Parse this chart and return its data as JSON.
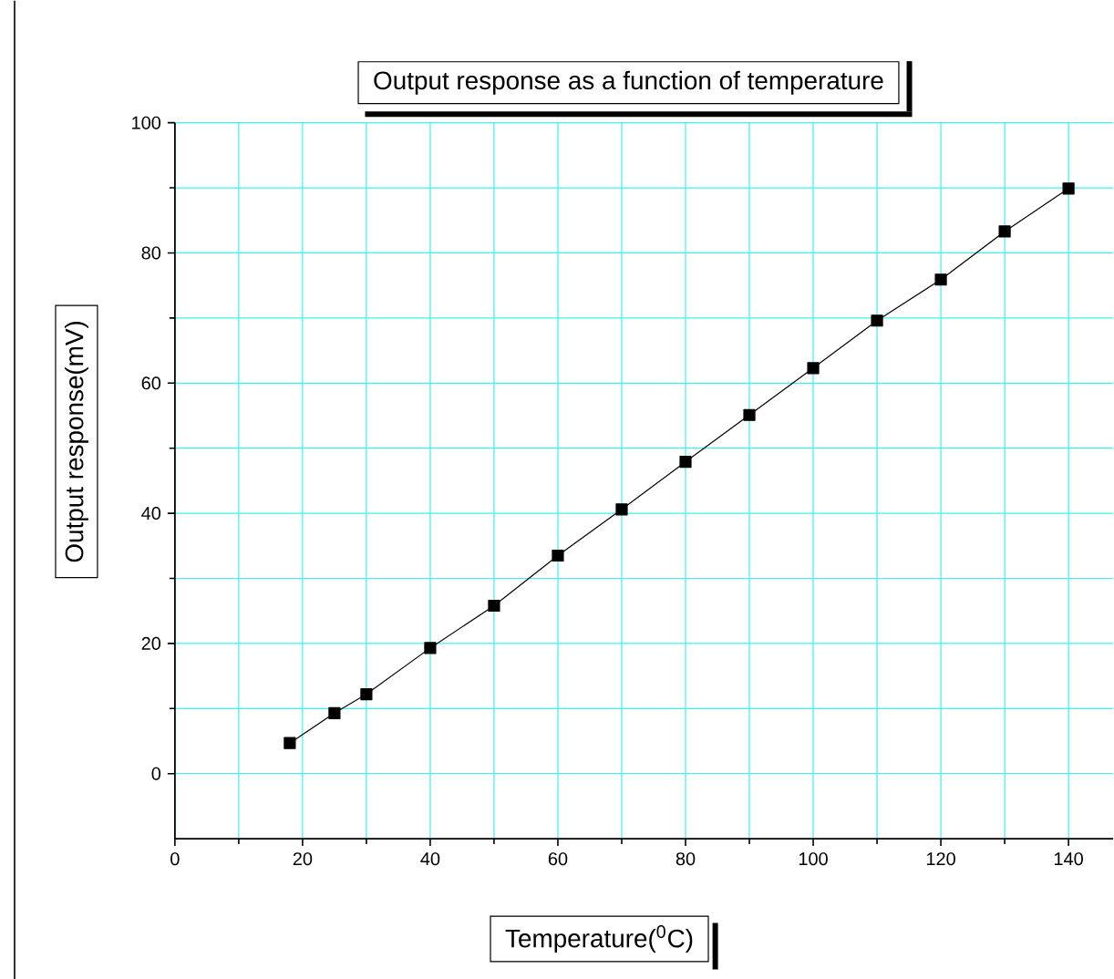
{
  "chart_data": {
    "type": "line",
    "title": "Output response as a function of temperature",
    "xlabel": "Temperature($^{0}$C)",
    "ylabel": "Output response(mV)",
    "x": [
      18,
      25,
      30,
      40,
      50,
      60,
      70,
      80,
      90,
      100,
      110,
      120,
      130,
      140
    ],
    "series": [
      {
        "color": "#000000",
        "values": [
          4.7,
          9.3,
          12.2,
          19.3,
          25.8,
          33.5,
          40.6,
          47.9,
          55.1,
          62.3,
          69.6,
          75.9,
          83.3,
          89.9
        ]
      }
    ],
    "xlim": [
      0,
      147
    ],
    "ylim": [
      -10,
      100
    ],
    "xticks": [
      0,
      20,
      40,
      60,
      80,
      100,
      120,
      140
    ],
    "yticks": [
      0,
      20,
      40,
      60,
      80,
      100
    ],
    "grid": true,
    "marker": "square",
    "line_style": "solid"
  }
}
